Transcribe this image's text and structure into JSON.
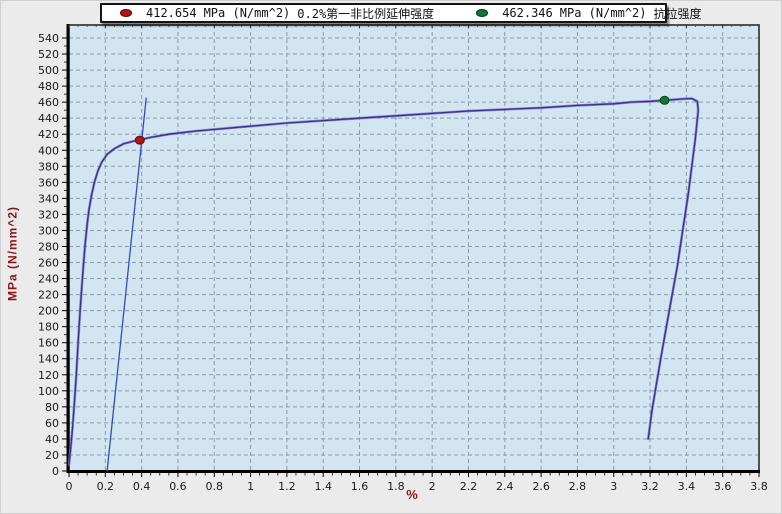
{
  "legend": {
    "items": [
      {
        "value": "412.654",
        "unit": "MPa (N/mm^2)",
        "name": "0.2%第一非比例延伸强度",
        "marker_color": "#b01414"
      },
      {
        "value": "462.346",
        "unit": "MPa (N/mm^2)",
        "name": "抗拉强度",
        "marker_color": "#0d7a33"
      }
    ]
  },
  "chart_data": {
    "type": "line",
    "title": "",
    "xlabel": "%",
    "ylabel": "MPa (N/mm^2)",
    "xlim": [
      0,
      3.8
    ],
    "xstep": 0.2,
    "ylim": [
      0,
      540
    ],
    "ystep": 20,
    "grid": "dashed",
    "legend_position": "top",
    "colors": {
      "plot_bg": "#d3e5f0",
      "grid": "#8a9bab",
      "frame": "#000000",
      "tick_text": "#1a1a1a",
      "axis_title": "#8b1616"
    },
    "series": [
      {
        "id": "stress-strain-curve",
        "color": "#34348e",
        "halo": "#8678cc",
        "points": [
          [
            0,
            8
          ],
          [
            0.01,
            30
          ],
          [
            0.02,
            55
          ],
          [
            0.03,
            85
          ],
          [
            0.04,
            120
          ],
          [
            0.05,
            160
          ],
          [
            0.06,
            196
          ],
          [
            0.07,
            228
          ],
          [
            0.08,
            258
          ],
          [
            0.09,
            285
          ],
          [
            0.1,
            308
          ],
          [
            0.11,
            326
          ],
          [
            0.125,
            345
          ],
          [
            0.14,
            360
          ],
          [
            0.16,
            375
          ],
          [
            0.18,
            385
          ],
          [
            0.21,
            395
          ],
          [
            0.25,
            402
          ],
          [
            0.3,
            408
          ],
          [
            0.35,
            411
          ],
          [
            0.39,
            413
          ],
          [
            0.45,
            416
          ],
          [
            0.55,
            420
          ],
          [
            0.7,
            424
          ],
          [
            0.85,
            427
          ],
          [
            1,
            430
          ],
          [
            1.2,
            434
          ],
          [
            1.4,
            437
          ],
          [
            1.6,
            440
          ],
          [
            1.8,
            443
          ],
          [
            2,
            446
          ],
          [
            2.2,
            449
          ],
          [
            2.4,
            451
          ],
          [
            2.6,
            453
          ],
          [
            2.8,
            456
          ],
          [
            3,
            458
          ],
          [
            3.1,
            460
          ],
          [
            3.2,
            461
          ],
          [
            3.3,
            462.5
          ],
          [
            3.38,
            464
          ],
          [
            3.43,
            464.5
          ],
          [
            3.46,
            461
          ],
          [
            3.465,
            450
          ],
          [
            3.45,
            415
          ],
          [
            3.43,
            380
          ],
          [
            3.41,
            345
          ],
          [
            3.38,
            300
          ],
          [
            3.35,
            255
          ],
          [
            3.31,
            205
          ],
          [
            3.27,
            155
          ],
          [
            3.24,
            115
          ],
          [
            3.21,
            75
          ],
          [
            3.19,
            40
          ]
        ]
      },
      {
        "id": "offset-line-0.2-percent",
        "color": "#2b4fc0",
        "points": [
          [
            0.21,
            0
          ],
          [
            0.425,
            465
          ]
        ]
      }
    ],
    "points_of_interest": [
      {
        "id": "proof-strength-point",
        "x": 0.39,
        "y": 412.654,
        "color": "#b01414",
        "edge": "#5c0a0a"
      },
      {
        "id": "tensile-strength-point",
        "x": 3.28,
        "y": 462.346,
        "color": "#0d7a33",
        "edge": "#03401c"
      }
    ]
  }
}
